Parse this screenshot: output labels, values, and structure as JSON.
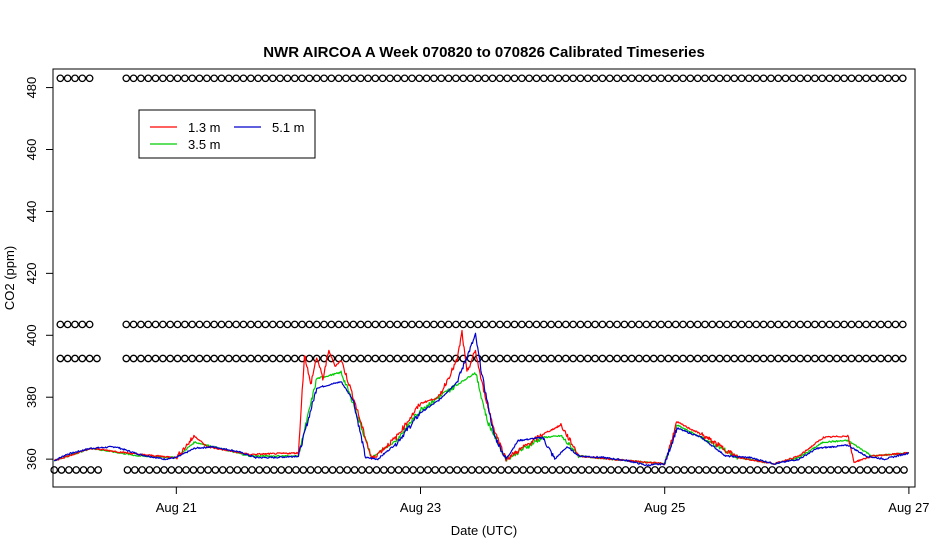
{
  "chart_data": {
    "type": "line",
    "title": "NWR AIRCOA A  Week 070820 to 070826  Calibrated Timeseries",
    "xlabel": "Date (UTC)",
    "ylabel": "CO2 (ppm)",
    "xlim": [
      19.99,
      27.05
    ],
    "ylim": [
      351,
      486
    ],
    "x_ticks": [
      {
        "x": 21,
        "label": "Aug 21"
      },
      {
        "x": 23,
        "label": "Aug 23"
      },
      {
        "x": 25,
        "label": "Aug 25"
      },
      {
        "x": 27,
        "label": "Aug 27"
      }
    ],
    "y_ticks": [
      360,
      380,
      400,
      420,
      440,
      460,
      480
    ],
    "grid": false,
    "legend": {
      "position": "top-left",
      "entries": [
        {
          "name": "1.3 m",
          "color": "#ff0000"
        },
        {
          "name": "3.5 m",
          "color": "#00cc00"
        },
        {
          "name": "5.1 m",
          "color": "#0000cc"
        }
      ]
    },
    "series": [
      {
        "name": "5.1 m",
        "color": "#0000cc",
        "x": [
          20.0,
          20.1,
          20.3,
          20.5,
          20.7,
          20.9,
          21.0,
          21.15,
          21.3,
          21.5,
          21.65,
          21.8,
          22.0,
          22.15,
          22.35,
          22.45,
          22.55,
          22.65,
          22.8,
          23.0,
          23.15,
          23.3,
          23.45,
          23.5,
          23.6,
          23.7,
          23.8,
          24.0,
          24.1,
          24.2,
          24.3,
          24.5,
          24.7,
          24.85,
          25.0,
          25.1,
          25.3,
          25.5,
          25.7,
          25.9,
          26.1,
          26.25,
          26.5,
          26.65,
          26.8,
          27.0
        ],
        "y": [
          359.5,
          361.5,
          363.5,
          364.0,
          361.5,
          360.0,
          360.5,
          363.5,
          364.0,
          362.5,
          360.5,
          360.5,
          361.0,
          383.0,
          385.0,
          379.0,
          360.5,
          360.0,
          365.0,
          375.0,
          379.0,
          385.0,
          400.0,
          388.0,
          368.0,
          360.0,
          366.0,
          367.0,
          360.0,
          364.0,
          361.0,
          360.5,
          359.5,
          358.0,
          358.5,
          370.0,
          367.0,
          361.0,
          360.5,
          358.5,
          360.0,
          363.5,
          364.5,
          361.0,
          360.0,
          362.0
        ]
      },
      {
        "name": "3.5 m",
        "color": "#00cc00",
        "x": [
          20.0,
          20.3,
          20.7,
          21.0,
          21.15,
          21.3,
          21.6,
          22.0,
          22.15,
          22.35,
          22.45,
          22.6,
          22.8,
          23.0,
          23.3,
          23.45,
          23.55,
          23.7,
          24.0,
          24.15,
          24.3,
          24.7,
          25.0,
          25.1,
          25.3,
          25.6,
          25.9,
          26.1,
          26.3,
          26.5,
          26.7,
          27.0
        ],
        "y": [
          359.5,
          363.5,
          361.0,
          360.5,
          365.5,
          364.0,
          361.0,
          361.0,
          386.0,
          388.0,
          378.0,
          360.5,
          366.0,
          376.0,
          384.0,
          388.0,
          372.0,
          360.0,
          367.0,
          367.5,
          361.0,
          359.5,
          358.5,
          371.0,
          367.0,
          360.5,
          358.5,
          360.5,
          365.5,
          366.0,
          361.0,
          362.0
        ]
      },
      {
        "name": "1.3 m",
        "color": "#ff0000",
        "x": [
          20.0,
          20.3,
          20.7,
          21.0,
          21.15,
          21.25,
          21.6,
          22.0,
          22.05,
          22.1,
          22.15,
          22.2,
          22.25,
          22.3,
          22.35,
          22.45,
          22.6,
          22.8,
          23.0,
          23.15,
          23.3,
          23.34,
          23.38,
          23.45,
          23.5,
          23.6,
          23.7,
          24.0,
          24.15,
          24.3,
          24.7,
          25.0,
          25.1,
          25.3,
          25.6,
          25.9,
          26.1,
          26.3,
          26.5,
          26.55,
          26.7,
          27.0
        ],
        "y": [
          359.5,
          363.5,
          361.5,
          360.5,
          367.5,
          364.0,
          361.5,
          362.0,
          394.0,
          384.0,
          393.0,
          386.0,
          395.0,
          390.0,
          392.0,
          380.0,
          360.0,
          367.0,
          378.0,
          380.0,
          392.0,
          401.0,
          388.0,
          395.0,
          385.0,
          370.0,
          360.0,
          368.0,
          371.0,
          361.0,
          359.5,
          358.5,
          372.0,
          368.0,
          360.5,
          358.5,
          361.0,
          367.0,
          367.5,
          359.0,
          361.0,
          362.0
        ]
      }
    ],
    "point_rows": [
      {
        "y": 483,
        "symbol": "o",
        "x_start": 20.05,
        "x_end": 27.0,
        "gaps": [
          [
            20.3,
            20.57
          ]
        ]
      },
      {
        "y": 403.5,
        "symbol": "o",
        "x_start": 20.05,
        "x_end": 27.0,
        "gaps": [
          [
            20.3,
            20.57
          ]
        ]
      },
      {
        "y": 392.5,
        "symbol": "o",
        "x_start": 20.05,
        "x_end": 27.0,
        "gaps": [
          [
            20.4,
            20.57
          ]
        ]
      },
      {
        "y": 356.5,
        "symbol": "o",
        "x_start": 20.0,
        "x_end": 27.0,
        "gaps": [
          [
            20.4,
            20.57
          ]
        ]
      }
    ]
  }
}
